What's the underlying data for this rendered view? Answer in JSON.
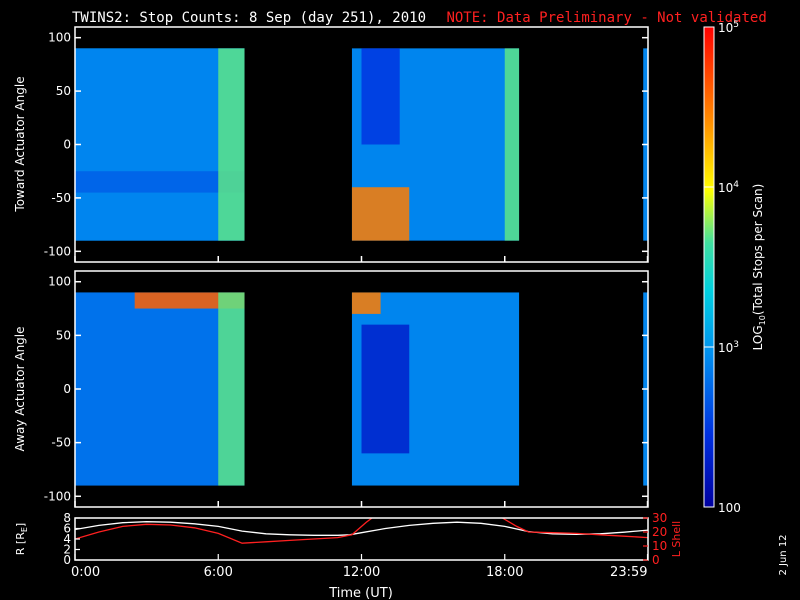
{
  "title": {
    "main": "TWINS2: Stop Counts:  8 Sep (day 251), 2010",
    "note": "NOTE: Data Preliminary - Not validated"
  },
  "date_stamp": "2 Jun 12",
  "colors": {
    "background": "#000000",
    "axes": "#ffffff",
    "note": "#ff2020",
    "l_shell_line": "#ff2020",
    "r_line": "#ffffff"
  },
  "chart_data": [
    {
      "type": "heatmap",
      "ylabel": "Toward Actuator Angle",
      "xlim": [
        0,
        24
      ],
      "ylim": [
        -110,
        110
      ],
      "yticks": [
        "100",
        "50",
        "0",
        "-50",
        "-100"
      ],
      "data_y_range": [
        -90,
        90
      ],
      "data_segments": [
        [
          0,
          7.1
        ],
        [
          11.6,
          18.6
        ],
        [
          23.8,
          24
        ]
      ],
      "features": [
        {
          "x": [
            0.0,
            7.1
          ],
          "y": [
            -90,
            90
          ],
          "level": "~800",
          "desc": "background"
        },
        {
          "x": [
            0.0,
            7.1
          ],
          "y": [
            -45,
            -25
          ],
          "level": "~500"
        },
        {
          "x": [
            6.0,
            7.1
          ],
          "y": [
            -90,
            90
          ],
          "level": "~5000"
        },
        {
          "x": [
            11.6,
            14.0
          ],
          "y": [
            -90,
            -40
          ],
          "level": "~30000"
        },
        {
          "x": [
            12.0,
            13.6
          ],
          "y": [
            0,
            90
          ],
          "level": "~300"
        },
        {
          "x": [
            18.0,
            18.6
          ],
          "y": [
            -90,
            90
          ],
          "level": "~5000"
        }
      ]
    },
    {
      "type": "heatmap",
      "ylabel": "Away Actuator Angle",
      "xlim": [
        0,
        24
      ],
      "ylim": [
        -110,
        110
      ],
      "yticks": [
        "100",
        "50",
        "0",
        "-50",
        "-100"
      ],
      "data_y_range": [
        -90,
        90
      ],
      "data_segments": [
        [
          0,
          7.1
        ],
        [
          11.6,
          18.6
        ],
        [
          23.8,
          24
        ]
      ],
      "features": [
        {
          "x": [
            0.0,
            7.1
          ],
          "y": [
            -90,
            90
          ],
          "level": "~600",
          "desc": "background"
        },
        {
          "x": [
            2.5,
            7.1
          ],
          "y": [
            75,
            90
          ],
          "level": "~40000"
        },
        {
          "x": [
            11.6,
            12.8
          ],
          "y": [
            70,
            90
          ],
          "level": "~30000"
        },
        {
          "x": [
            12.0,
            14.0
          ],
          "y": [
            -60,
            60
          ],
          "level": "~200"
        },
        {
          "x": [
            6.0,
            7.1
          ],
          "y": [
            -90,
            90
          ],
          "level": "~5000"
        }
      ]
    },
    {
      "type": "line",
      "ylabel_left": "R [R",
      "ylabel_left_sub": "E",
      "ylabel_left_end": "]",
      "ylabel_right": "L Shell",
      "xlabel": "Time (UT)",
      "xticks": [
        "0:00",
        "6:00",
        "12:00",
        "18:00",
        "23:59"
      ],
      "xtick_values": [
        0,
        6,
        12,
        18,
        23.98
      ],
      "xlim": [
        0,
        24
      ],
      "ylim_left": [
        0,
        8
      ],
      "yticks_left": [
        "0",
        "2",
        "4",
        "6",
        "8"
      ],
      "ylim_right": [
        0,
        30
      ],
      "yticks_right": [
        "0",
        "10",
        "20",
        "30"
      ],
      "series": [
        {
          "axis": "left",
          "x": [
            0,
            1,
            2,
            3,
            4,
            5,
            6,
            7,
            8,
            9,
            10,
            11,
            11.5,
            12,
            13,
            14,
            15,
            16,
            17,
            18,
            19,
            20,
            21,
            22,
            23,
            24
          ],
          "values": [
            5.8,
            6.6,
            7.1,
            7.3,
            7.2,
            6.9,
            6.4,
            5.5,
            5.0,
            4.8,
            4.7,
            4.7,
            4.8,
            5.2,
            6.0,
            6.6,
            7.0,
            7.2,
            7.0,
            6.4,
            5.4,
            5.0,
            4.9,
            5.0,
            5.3,
            5.7
          ]
        },
        {
          "axis": "right",
          "x": [
            0,
            1,
            2,
            3,
            4,
            5,
            6,
            7,
            8,
            9,
            10,
            11,
            11.6,
            12.2,
            12.6
          ],
          "values": [
            15,
            20,
            24,
            25.5,
            25,
            23,
            19,
            12,
            13,
            14,
            15,
            16,
            18,
            27,
            32
          ]
        },
        {
          "axis": "right",
          "x": [
            17.9,
            18.5,
            19,
            20,
            21,
            22,
            23,
            24
          ],
          "values": [
            30,
            24,
            20,
            19.5,
            19,
            18,
            17,
            16
          ]
        }
      ]
    }
  ],
  "colorbar": {
    "label_prefix": "LOG",
    "label_sub": "10",
    "label_rest": "(Total Stops per Scan)",
    "scale": "log",
    "range": [
      100,
      100000
    ],
    "tick_labels": [
      {
        "base": "10",
        "exp": "5",
        "value": 100000
      },
      {
        "base": "10",
        "exp": "4",
        "value": 10000
      },
      {
        "base": "10",
        "exp": "3",
        "value": 1000
      },
      {
        "plain": "100",
        "value": 100
      }
    ]
  }
}
